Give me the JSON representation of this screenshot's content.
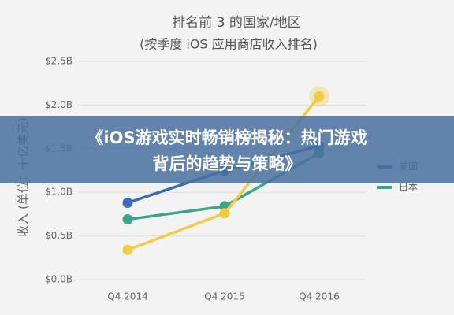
{
  "chart_data": {
    "type": "line",
    "title": "排名前 3 的国家/地区",
    "subtitle": "(按季度 iOS 应用商店收入排名)",
    "y_label": "收入 (单位：十亿美元)",
    "categories": [
      "Q4 2014",
      "Q4 2015",
      "Q4 2016"
    ],
    "series": [
      {
        "name": "美国",
        "color": "#3a6db5",
        "values": [
          0.88,
          1.25,
          1.53
        ]
      },
      {
        "name": "日本",
        "color": "#3aa58e",
        "values": [
          0.69,
          0.84,
          1.45
        ]
      },
      {
        "color": "#f2cb45",
        "values": [
          0.34,
          0.76,
          2.1
        ]
      }
    ],
    "ylim": [
      0,
      2.5
    ],
    "yticks": [
      {
        "value": 0,
        "label": "$0.0B"
      },
      {
        "value": 0.5,
        "label": "$0.5B"
      },
      {
        "value": 1,
        "label": "$1.0B"
      },
      {
        "value": 1.5,
        "label": "$1.5B"
      },
      {
        "value": 2,
        "label": "$2.0B"
      },
      {
        "value": 2.5,
        "label": "$2.5B"
      }
    ],
    "grid": true
  },
  "banner": {
    "lines": [
      "《iOS游戏实时畅销榜揭秘：热门游戏",
      "背后的趋势与策略》"
    ]
  }
}
